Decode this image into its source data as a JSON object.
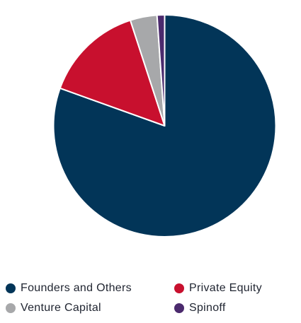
{
  "chart_data": {
    "type": "pie",
    "title": "",
    "categories": [
      "Founders and Others",
      "Private Equity",
      "Venture Capital",
      "Spinoff"
    ],
    "values": [
      80.5,
      14.5,
      3.9,
      1.1
    ],
    "unit": "%",
    "colors": [
      "#023558",
      "#C8102E",
      "#A7A8AA",
      "#4B2A6D"
    ],
    "legend_position": "bottom",
    "start_angle": "top, clockwise"
  },
  "legend": {
    "items": [
      {
        "label": "Founders and Others",
        "color": "#023558"
      },
      {
        "label": "Private Equity",
        "color": "#C8102E"
      },
      {
        "label": "Venture Capital",
        "color": "#A7A8AA"
      },
      {
        "label": "Spinoff",
        "color": "#4B2A6D"
      }
    ]
  }
}
